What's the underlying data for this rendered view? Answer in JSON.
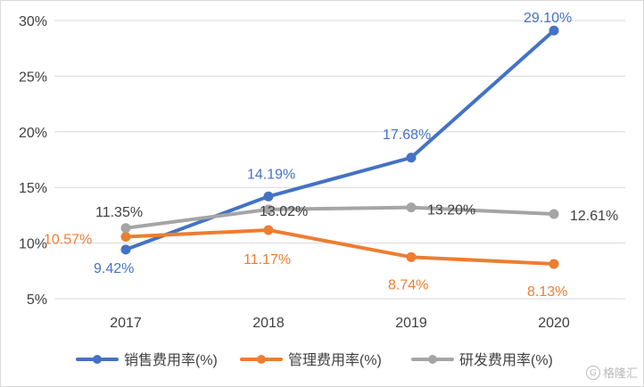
{
  "chart_data": {
    "type": "line",
    "x": [
      "2017",
      "2018",
      "2019",
      "2020"
    ],
    "ylim": [
      5,
      30
    ],
    "yticks": [
      "5%",
      "10%",
      "15%",
      "20%",
      "25%",
      "30%"
    ],
    "grid": true,
    "legend_position": "bottom",
    "series": [
      {
        "name": "销售费用率(%)",
        "color": "#4472c4",
        "values": [
          9.42,
          14.19,
          17.68,
          29.1
        ],
        "labels": [
          "9.42%",
          "14.19%",
          "17.68%",
          "29.10%"
        ]
      },
      {
        "name": "管理费用率(%)",
        "color": "#ed7d31",
        "values": [
          10.57,
          11.17,
          8.74,
          8.13
        ],
        "labels": [
          "10.57%",
          "11.17%",
          "8.74%",
          "8.13%"
        ]
      },
      {
        "name": "研发费用率(%)",
        "color": "#a5a5a5",
        "values": [
          11.35,
          13.02,
          13.2,
          12.61
        ],
        "labels": [
          "11.35%",
          "13.02%",
          "13.20%",
          "12.61%"
        ]
      }
    ]
  },
  "watermark": {
    "text": "格隆汇",
    "icon": "G"
  }
}
